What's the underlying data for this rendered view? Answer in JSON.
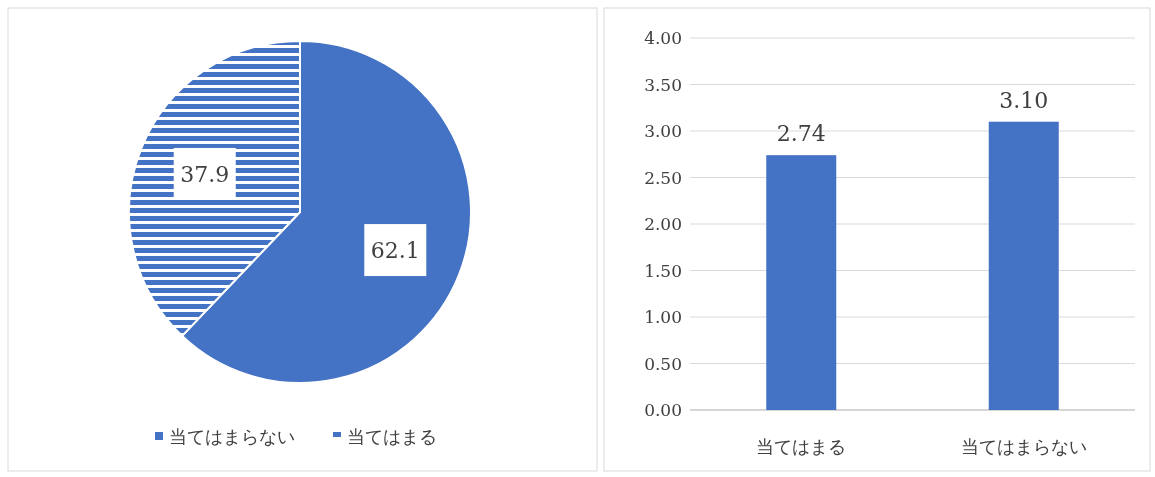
{
  "chart_data": [
    {
      "type": "pie",
      "categories": [
        "当てはまらない",
        "当てはまる"
      ],
      "values": [
        62.1,
        37.9
      ],
      "colors": [
        "#4472c4",
        "#4472c4"
      ],
      "data_labels": true,
      "legend": "bottom"
    },
    {
      "type": "bar",
      "categories": [
        "当てはまる",
        "当てはまらない"
      ],
      "values": [
        2.74,
        3.1
      ],
      "color": "#4472c4",
      "ylim": [
        0,
        4
      ],
      "yticks": [
        {
          "value": 0,
          "label": "0.00"
        },
        {
          "value": 0.5,
          "label": "0.50"
        },
        {
          "value": 1,
          "label": "1.00"
        },
        {
          "value": 1.5,
          "label": "1.50"
        },
        {
          "value": 2,
          "label": "2.00"
        },
        {
          "value": 2.5,
          "label": "2.50"
        },
        {
          "value": 3,
          "label": "3.00"
        },
        {
          "value": 3.5,
          "label": "3.50"
        },
        {
          "value": 4,
          "label": "4.00"
        }
      ],
      "value_labels": [
        "2.74",
        "3.10"
      ],
      "grid": "y"
    }
  ]
}
